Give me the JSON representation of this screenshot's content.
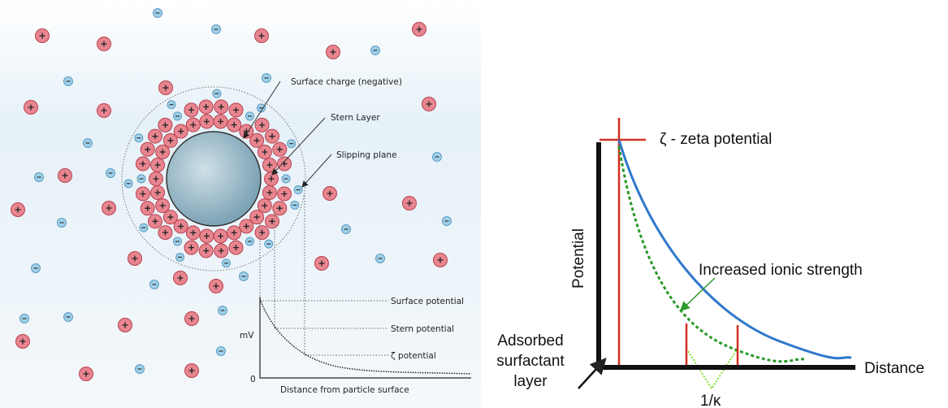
{
  "left": {
    "surface_charge": "Surface charge (negative)",
    "stern_layer": "Stern Layer",
    "slipping_plane": "Slipping plane",
    "plot": {
      "y_axis": "mV",
      "origin": "0",
      "x_axis": "Distance from particle surface",
      "surface_potential": "Surface potential",
      "stern_potential": "Stern potential",
      "zeta_potential": "ζ potential"
    }
  },
  "right": {
    "zeta": "ζ - zeta potential",
    "y_axis": "Potential",
    "ionic": "Increased ionic strength",
    "adsorbed": [
      "Adsorbed",
      "surfactant",
      "layer"
    ],
    "x_axis": "Distance",
    "kappa": "1/κ"
  }
}
